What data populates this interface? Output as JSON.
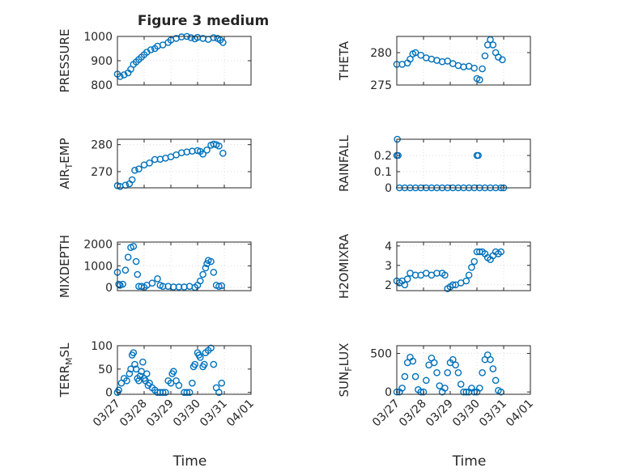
{
  "figure": {
    "title": "Figure 3 medium",
    "marker_color": "#0072BD",
    "axis_color": "#262626",
    "grid_color": "#dcdcdc"
  },
  "chart_data": [
    {
      "type": "scatter",
      "name": "pressure",
      "ylabel": "PRESSURE",
      "xlim": [
        0,
        5
      ],
      "ylim": [
        800,
        1000
      ],
      "yticks": [
        800,
        900,
        1000
      ],
      "ytick_labels": [
        "800",
        "900",
        "1000"
      ],
      "xtick_labels": [
        "03/27",
        "03/28",
        "03/29",
        "03/30",
        "03/31",
        "04/01"
      ],
      "show_xticklabels": false,
      "xlabel": "",
      "series": [
        {
          "x": [
            0,
            0.1,
            0.25,
            0.4,
            0.5,
            0.6,
            0.7,
            0.8,
            0.9,
            1.0,
            1.1,
            1.25,
            1.4,
            1.5,
            1.7,
            1.9,
            2.0,
            2.2,
            2.4,
            2.6,
            2.75,
            2.9,
            3.0,
            3.2,
            3.4,
            3.6,
            3.75,
            3.85,
            3.95
          ],
          "y": [
            845,
            835,
            842,
            850,
            865,
            885,
            895,
            905,
            915,
            925,
            935,
            945,
            950,
            960,
            965,
            975,
            985,
            992,
            998,
            1000,
            995,
            990,
            996,
            992,
            988,
            995,
            992,
            985,
            975
          ]
        }
      ]
    },
    {
      "type": "scatter",
      "name": "theta",
      "ylabel": "THETA",
      "xlim": [
        0,
        5
      ],
      "ylim": [
        275,
        282.5
      ],
      "yticks": [
        275,
        280
      ],
      "ytick_labels": [
        "275",
        "280"
      ],
      "xtick_labels": [
        "03/27",
        "03/28",
        "03/29",
        "03/30",
        "03/31",
        "04/01"
      ],
      "show_xticklabels": false,
      "xlabel": "",
      "series": [
        {
          "x": [
            0,
            0.2,
            0.4,
            0.5,
            0.6,
            0.7,
            0.9,
            1.1,
            1.3,
            1.5,
            1.7,
            1.9,
            2.1,
            2.3,
            2.5,
            2.7,
            2.9,
            3.0,
            3.1,
            3.2,
            3.3,
            3.4,
            3.5,
            3.6,
            3.7,
            3.8,
            3.95
          ],
          "y": [
            278.2,
            278.2,
            278.4,
            279,
            279.8,
            280,
            279.6,
            279.2,
            279,
            278.8,
            278.6,
            278.7,
            278.3,
            278,
            277.8,
            277.9,
            277.6,
            276,
            275.8,
            277.5,
            279.5,
            281.2,
            282,
            281.2,
            280,
            279.3,
            278.9
          ]
        }
      ]
    },
    {
      "type": "scatter",
      "name": "air_temp",
      "ylabel": "AIR_TEMP",
      "xlim": [
        0,
        5
      ],
      "ylim": [
        264,
        282
      ],
      "yticks": [
        270,
        280
      ],
      "ytick_labels": [
        "270",
        "280"
      ],
      "xtick_labels": [
        "03/27",
        "03/28",
        "03/29",
        "03/30",
        "03/31",
        "04/01"
      ],
      "show_xticklabels": false,
      "xlabel": "",
      "series": [
        {
          "x": [
            0,
            0.1,
            0.3,
            0.45,
            0.55,
            0.65,
            0.8,
            1.0,
            1.2,
            1.4,
            1.6,
            1.8,
            2.0,
            2.2,
            2.4,
            2.6,
            2.8,
            3.0,
            3.1,
            3.2,
            3.35,
            3.5,
            3.6,
            3.7,
            3.8,
            3.95
          ],
          "y": [
            264.8,
            264.5,
            265,
            265.5,
            267,
            270.5,
            271,
            272.5,
            273.2,
            274.5,
            274.6,
            275,
            275.5,
            276.2,
            277,
            277.3,
            277.6,
            277.8,
            277.5,
            276.5,
            278,
            279.8,
            280.2,
            280,
            279.5,
            276.8
          ]
        }
      ]
    },
    {
      "type": "scatter",
      "name": "rainfall",
      "ylabel": "RAINFALL",
      "xlim": [
        0,
        5
      ],
      "ylim": [
        0,
        0.3
      ],
      "yticks": [
        0,
        0.1,
        0.2
      ],
      "ytick_labels": [
        "0",
        "0.1",
        "0.2"
      ],
      "xtick_labels": [
        "03/27",
        "03/28",
        "03/29",
        "03/30",
        "03/31",
        "04/01"
      ],
      "show_xticklabels": false,
      "xlabel": "",
      "series": [
        {
          "x": [
            0,
            0.02,
            0.05,
            0.1,
            0.3,
            0.5,
            0.7,
            0.9,
            1.1,
            1.3,
            1.5,
            1.7,
            1.9,
            2.1,
            2.3,
            2.5,
            2.7,
            2.9,
            3.0,
            3.05,
            3.1,
            3.3,
            3.5,
            3.7,
            3.9,
            4.0
          ],
          "y": [
            0.2,
            0.3,
            0.2,
            0,
            0,
            0,
            0,
            0,
            0,
            0,
            0,
            0,
            0,
            0,
            0,
            0,
            0,
            0,
            0.2,
            0.2,
            0,
            0,
            0,
            0,
            0,
            0
          ]
        }
      ]
    },
    {
      "type": "scatter",
      "name": "mixdepth",
      "ylabel": "MIXDEPTH",
      "xlim": [
        0,
        5
      ],
      "ylim": [
        -150,
        2100
      ],
      "yticks": [
        0,
        1000,
        2000
      ],
      "ytick_labels": [
        "0",
        "1000",
        "2000"
      ],
      "xtick_labels": [
        "03/27",
        "03/28",
        "03/29",
        "03/30",
        "03/31",
        "04/01"
      ],
      "show_xticklabels": false,
      "xlabel": "",
      "series": [
        {
          "x": [
            0,
            0.05,
            0.1,
            0.2,
            0.3,
            0.4,
            0.5,
            0.6,
            0.7,
            0.75,
            0.8,
            0.9,
            1.0,
            1.1,
            1.3,
            1.5,
            1.6,
            1.7,
            1.9,
            2.1,
            2.3,
            2.5,
            2.7,
            2.9,
            3.0,
            3.1,
            3.2,
            3.3,
            3.35,
            3.4,
            3.5,
            3.6,
            3.7,
            3.8,
            3.9
          ],
          "y": [
            700,
            150,
            100,
            150,
            800,
            1400,
            1850,
            1900,
            1200,
            600,
            50,
            50,
            0,
            100,
            200,
            400,
            100,
            50,
            50,
            20,
            20,
            20,
            50,
            0,
            100,
            300,
            600,
            900,
            1100,
            1250,
            1200,
            700,
            100,
            50,
            80
          ]
        }
      ]
    },
    {
      "type": "scatter",
      "name": "h2omixra",
      "ylabel": "H2OMIXRA",
      "xlim": [
        0,
        5
      ],
      "ylim": [
        1.7,
        4.2
      ],
      "yticks": [
        2,
        3,
        4
      ],
      "ytick_labels": [
        "2",
        "3",
        "4"
      ],
      "xtick_labels": [
        "03/27",
        "03/28",
        "03/29",
        "03/30",
        "03/31",
        "04/01"
      ],
      "show_xticklabels": false,
      "xlabel": "",
      "series": [
        {
          "x": [
            0,
            0.1,
            0.2,
            0.3,
            0.4,
            0.5,
            0.7,
            0.9,
            1.1,
            1.3,
            1.5,
            1.7,
            1.8,
            1.9,
            2.0,
            2.1,
            2.2,
            2.4,
            2.6,
            2.7,
            2.8,
            2.9,
            3.0,
            3.1,
            3.2,
            3.3,
            3.4,
            3.5,
            3.6,
            3.7,
            3.8,
            3.9
          ],
          "y": [
            2.2,
            2.1,
            2.2,
            2.0,
            2.3,
            2.6,
            2.5,
            2.5,
            2.6,
            2.5,
            2.6,
            2.6,
            2.5,
            1.8,
            1.9,
            2.0,
            2.0,
            2.1,
            2.2,
            2.5,
            2.9,
            3.2,
            3.7,
            3.7,
            3.7,
            3.6,
            3.4,
            3.3,
            3.5,
            3.7,
            3.6,
            3.7
          ]
        }
      ]
    },
    {
      "type": "scatter",
      "name": "terr_msl",
      "ylabel": "TERR_MSL",
      "xlim": [
        0,
        5
      ],
      "ylim": [
        -4,
        100
      ],
      "yticks": [
        0,
        50,
        100
      ],
      "ytick_labels": [
        "0",
        "50",
        "100"
      ],
      "xtick_labels": [
        "03/27",
        "03/28",
        "03/29",
        "03/30",
        "03/31",
        "04/01"
      ],
      "show_xticklabels": true,
      "xlabel": "Time",
      "series": [
        {
          "x": [
            0,
            0.05,
            0.15,
            0.25,
            0.35,
            0.45,
            0.5,
            0.55,
            0.6,
            0.65,
            0.7,
            0.75,
            0.8,
            0.85,
            0.9,
            0.95,
            1.0,
            1.05,
            1.1,
            1.15,
            1.2,
            1.3,
            1.4,
            1.5,
            1.6,
            1.7,
            1.8,
            1.9,
            2.0,
            2.05,
            2.1,
            2.2,
            2.3,
            2.5,
            2.6,
            2.7,
            2.8,
            2.85,
            2.9,
            3.0,
            3.05,
            3.1,
            3.2,
            3.25,
            3.3,
            3.4,
            3.5,
            3.6,
            3.7,
            3.8,
            3.9
          ],
          "y": [
            0,
            5,
            20,
            30,
            25,
            40,
            50,
            80,
            85,
            60,
            50,
            30,
            25,
            35,
            45,
            65,
            30,
            25,
            40,
            15,
            20,
            10,
            5,
            0,
            0,
            0,
            0,
            25,
            20,
            40,
            45,
            25,
            15,
            0,
            0,
            0,
            20,
            55,
            60,
            85,
            80,
            75,
            55,
            60,
            85,
            90,
            95,
            60,
            10,
            0,
            20
          ]
        }
      ]
    },
    {
      "type": "scatter",
      "name": "sun_flux",
      "ylabel": "SUN_FLUX",
      "xlim": [
        0,
        5
      ],
      "ylim": [
        -30,
        600
      ],
      "yticks": [
        0,
        500
      ],
      "ytick_labels": [
        "0",
        "500"
      ],
      "xtick_labels": [
        "03/27",
        "03/28",
        "03/29",
        "03/30",
        "03/31",
        "04/01"
      ],
      "show_xticklabels": true,
      "xlabel": "Time",
      "series": [
        {
          "x": [
            0,
            0.1,
            0.2,
            0.3,
            0.4,
            0.5,
            0.6,
            0.7,
            0.8,
            0.9,
            1.0,
            1.1,
            1.2,
            1.3,
            1.4,
            1.5,
            1.6,
            1.7,
            1.8,
            1.9,
            2.0,
            2.1,
            2.2,
            2.3,
            2.4,
            2.5,
            2.6,
            2.7,
            2.8,
            2.9,
            3.0,
            3.1,
            3.2,
            3.3,
            3.4,
            3.5,
            3.6,
            3.7,
            3.8,
            3.9
          ],
          "y": [
            0,
            0,
            50,
            200,
            380,
            450,
            400,
            200,
            30,
            0,
            0,
            150,
            350,
            440,
            380,
            250,
            80,
            0,
            50,
            250,
            380,
            420,
            350,
            250,
            100,
            0,
            0,
            0,
            50,
            0,
            0,
            50,
            250,
            420,
            480,
            420,
            300,
            150,
            20,
            0
          ]
        }
      ]
    }
  ]
}
